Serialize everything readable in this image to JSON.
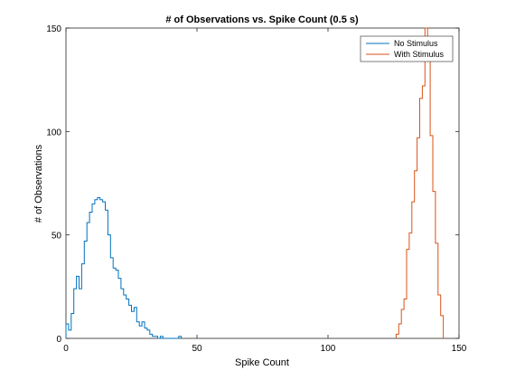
{
  "chart_data": {
    "type": "histogram",
    "title": "# of Observations vs. Spike Count (0.5 s)",
    "xlabel": "Spike Count",
    "ylabel": "# of Observations",
    "xlim": [
      0,
      150
    ],
    "ylim": [
      0,
      150
    ],
    "xticks": [
      0,
      50,
      100,
      150
    ],
    "yticks": [
      0,
      50,
      100,
      150
    ],
    "grid": false,
    "legend_position": "top-right",
    "bin_width": 1,
    "series": [
      {
        "name": "No Stimulus",
        "color": "#0072bd",
        "bin_edges_start": 0,
        "counts": [
          7,
          4,
          12,
          24,
          30,
          24,
          36,
          47,
          56,
          61,
          65,
          67,
          68,
          67,
          66,
          62,
          50,
          39,
          34,
          33,
          29,
          24,
          21,
          19,
          16,
          13,
          15,
          8,
          6,
          8,
          5,
          4,
          2,
          1,
          1,
          0,
          1,
          0,
          0,
          0,
          0,
          0,
          0,
          1
        ]
      },
      {
        "name": "With Stimulus",
        "color": "#d95319",
        "bin_edges_start": 126,
        "counts": [
          2,
          7,
          14,
          19,
          43,
          51,
          66,
          81,
          97,
          116,
          122,
          150,
          145,
          98,
          71,
          46,
          21,
          11
        ]
      }
    ]
  }
}
